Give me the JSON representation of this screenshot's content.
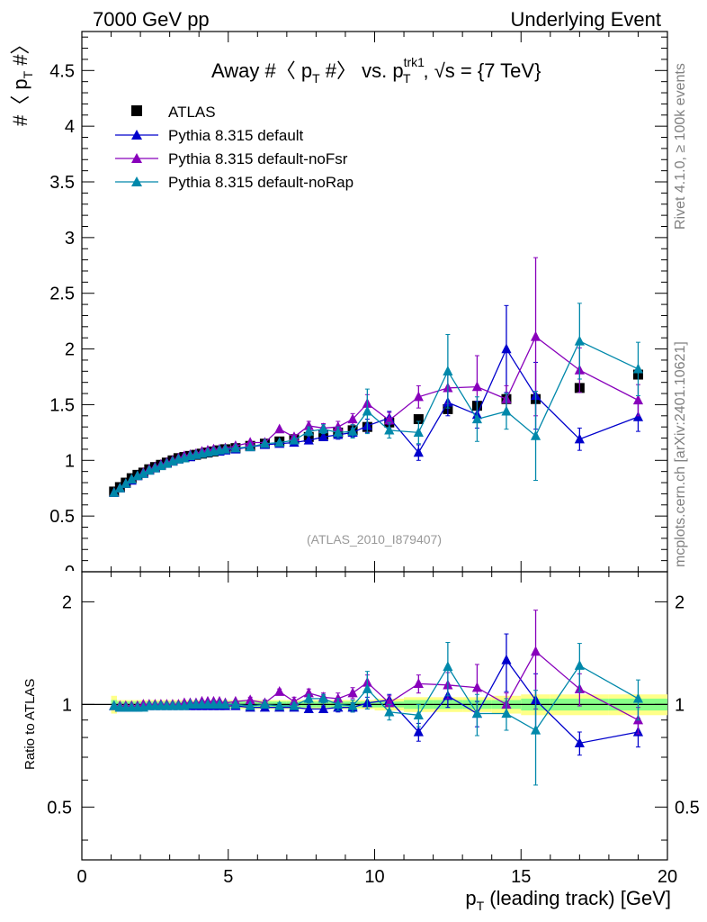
{
  "header": {
    "left": "7000 GeV pp",
    "right": "Underlying Event"
  },
  "side_labels": {
    "rivet": "Rivet 4.1.0, ≥ 100k events",
    "mcplots": "mcplots.cern.ch [arXiv:2401.10621]"
  },
  "watermark": "(ATLAS_2010_I879407)",
  "colors": {
    "atlas": "#000000",
    "default": "#0000cc",
    "noFsr": "#8800bb",
    "noRap": "#0088aa",
    "band_outer": "#ffff88",
    "band_inner": "#88ff88"
  },
  "chart_data": [
    {
      "panel": "main",
      "type": "scatter",
      "title_parts": {
        "prefix": "Away #〈 p",
        "sub_T": "T",
        "mid": " #〉 vs. p",
        "sup_trk1": "trk1",
        "sub_T2": "T",
        "suffix": ", √s = {7 TeV}"
      },
      "ylabel_parts": {
        "prefix": "#〈 p",
        "sub": "T",
        "suffix": " #〉"
      },
      "xlim": [
        0,
        20
      ],
      "ylim": [
        0,
        4.85
      ],
      "yticks": [
        0.5,
        1,
        1.5,
        2,
        2.5,
        3,
        3.5,
        4,
        4.5
      ],
      "ytick_labels": [
        "0.5",
        "1",
        "1.5",
        "2",
        "2.5",
        "3",
        "3.5",
        "4",
        "4.5"
      ],
      "legend": [
        "ATLAS",
        "Pythia 8.315 default",
        "Pythia 8.315 default-noFsr",
        "Pythia 8.315 default-noRap"
      ],
      "series": [
        {
          "name": "ATLAS",
          "style": "square",
          "x": [
            1.1,
            1.3,
            1.5,
            1.7,
            1.9,
            2.1,
            2.3,
            2.5,
            2.7,
            2.9,
            3.1,
            3.3,
            3.5,
            3.7,
            3.9,
            4.1,
            4.3,
            4.5,
            4.7,
            4.9,
            5.25,
            5.75,
            6.25,
            6.75,
            7.25,
            7.75,
            8.25,
            8.75,
            9.25,
            9.75,
            10.5,
            11.5,
            12.5,
            13.5,
            14.5,
            15.5,
            17.0,
            19.0
          ],
          "values": [
            0.72,
            0.76,
            0.8,
            0.84,
            0.87,
            0.89,
            0.92,
            0.94,
            0.96,
            0.98,
            1.0,
            1.02,
            1.03,
            1.04,
            1.05,
            1.06,
            1.07,
            1.08,
            1.09,
            1.1,
            1.11,
            1.13,
            1.15,
            1.17,
            1.19,
            1.21,
            1.23,
            1.25,
            1.27,
            1.3,
            1.34,
            1.37,
            1.46,
            1.49,
            1.55,
            1.55,
            1.65,
            1.77
          ]
        },
        {
          "name": "Pythia 8.315 default",
          "style": "line-triangle",
          "x": [
            1.1,
            1.3,
            1.5,
            1.7,
            1.9,
            2.1,
            2.3,
            2.5,
            2.7,
            2.9,
            3.1,
            3.3,
            3.5,
            3.7,
            3.9,
            4.1,
            4.3,
            4.5,
            4.7,
            4.9,
            5.25,
            5.75,
            6.25,
            6.75,
            7.25,
            7.75,
            8.25,
            8.75,
            9.25,
            9.75,
            10.5,
            11.5,
            12.5,
            13.5,
            14.5,
            15.5,
            17.0,
            19.0
          ],
          "values": [
            0.71,
            0.75,
            0.79,
            0.82,
            0.86,
            0.88,
            0.91,
            0.93,
            0.96,
            0.98,
            0.99,
            1.01,
            1.02,
            1.03,
            1.05,
            1.06,
            1.07,
            1.08,
            1.08,
            1.09,
            1.1,
            1.12,
            1.14,
            1.15,
            1.16,
            1.18,
            1.21,
            1.23,
            1.25,
            1.31,
            1.38,
            1.07,
            1.52,
            1.41,
            2.0,
            1.58,
            1.19,
            1.39
          ],
          "errors": [
            0.01,
            0.01,
            0.01,
            0.01,
            0.01,
            0.01,
            0.01,
            0.01,
            0.01,
            0.01,
            0.01,
            0.01,
            0.01,
            0.01,
            0.01,
            0.01,
            0.01,
            0.01,
            0.01,
            0.01,
            0.01,
            0.01,
            0.02,
            0.02,
            0.02,
            0.03,
            0.03,
            0.04,
            0.04,
            0.06,
            0.06,
            0.07,
            0.12,
            0.12,
            0.39,
            0.3,
            0.1,
            0.13
          ]
        },
        {
          "name": "Pythia 8.315 default-noFsr",
          "style": "line-triangle",
          "x": [
            1.1,
            1.3,
            1.5,
            1.7,
            1.9,
            2.1,
            2.3,
            2.5,
            2.7,
            2.9,
            3.1,
            3.3,
            3.5,
            3.7,
            3.9,
            4.1,
            4.3,
            4.5,
            4.7,
            4.9,
            5.25,
            5.75,
            6.25,
            6.75,
            7.25,
            7.75,
            8.25,
            8.75,
            9.25,
            9.75,
            10.5,
            11.5,
            12.5,
            13.5,
            14.5,
            15.5,
            17.0,
            19.0
          ],
          "values": [
            0.71,
            0.75,
            0.79,
            0.83,
            0.86,
            0.89,
            0.92,
            0.94,
            0.96,
            0.98,
            1.0,
            1.02,
            1.04,
            1.05,
            1.06,
            1.08,
            1.09,
            1.1,
            1.1,
            1.11,
            1.13,
            1.16,
            1.16,
            1.28,
            1.21,
            1.31,
            1.29,
            1.3,
            1.37,
            1.51,
            1.36,
            1.57,
            1.65,
            1.66,
            1.55,
            2.11,
            1.81,
            1.54
          ],
          "errors": [
            0.01,
            0.01,
            0.01,
            0.01,
            0.01,
            0.01,
            0.01,
            0.01,
            0.01,
            0.01,
            0.01,
            0.01,
            0.01,
            0.01,
            0.01,
            0.01,
            0.01,
            0.01,
            0.01,
            0.01,
            0.01,
            0.02,
            0.02,
            0.03,
            0.03,
            0.04,
            0.04,
            0.05,
            0.05,
            0.08,
            0.07,
            0.1,
            0.14,
            0.28,
            0.12,
            0.71,
            0.2,
            0.14
          ]
        },
        {
          "name": "Pythia 8.315 default-noRap",
          "style": "line-triangle",
          "x": [
            1.1,
            1.3,
            1.5,
            1.7,
            1.9,
            2.1,
            2.3,
            2.5,
            2.7,
            2.9,
            3.1,
            3.3,
            3.5,
            3.7,
            3.9,
            4.1,
            4.3,
            4.5,
            4.7,
            4.9,
            5.25,
            5.75,
            6.25,
            6.75,
            7.25,
            7.75,
            8.25,
            8.75,
            9.25,
            9.75,
            10.5,
            11.5,
            12.5,
            13.5,
            14.5,
            15.5,
            17.0,
            19.0
          ],
          "values": [
            0.71,
            0.75,
            0.79,
            0.83,
            0.86,
            0.88,
            0.91,
            0.93,
            0.95,
            0.97,
            0.99,
            1.01,
            1.02,
            1.04,
            1.05,
            1.06,
            1.07,
            1.08,
            1.09,
            1.1,
            1.11,
            1.12,
            1.15,
            1.16,
            1.18,
            1.26,
            1.28,
            1.25,
            1.26,
            1.44,
            1.27,
            1.25,
            1.8,
            1.37,
            1.44,
            1.22,
            2.07,
            1.82
          ],
          "errors": [
            0.01,
            0.01,
            0.01,
            0.01,
            0.01,
            0.01,
            0.01,
            0.01,
            0.01,
            0.01,
            0.01,
            0.01,
            0.01,
            0.01,
            0.01,
            0.01,
            0.01,
            0.01,
            0.01,
            0.01,
            0.01,
            0.02,
            0.02,
            0.02,
            0.03,
            0.04,
            0.04,
            0.05,
            0.06,
            0.2,
            0.07,
            0.1,
            0.33,
            0.2,
            0.16,
            0.4,
            0.34,
            0.24
          ]
        }
      ]
    },
    {
      "panel": "ratio",
      "type": "scatter",
      "ylabel": "Ratio to ATLAS",
      "xlabel_parts": {
        "prefix": "p",
        "sub": "T",
        "suffix": " (leading track) [GeV]"
      },
      "xlim": [
        0,
        20
      ],
      "ylim": [
        0.35,
        2.45
      ],
      "xticks": [
        0,
        5,
        10,
        15,
        20
      ],
      "xtick_labels": [
        "0",
        "5",
        "10",
        "15",
        "20"
      ],
      "yticks": [
        0.5,
        1,
        2
      ],
      "ytick_labels": [
        "0.5",
        "1",
        "2"
      ],
      "reference_line": 1,
      "band_edges": [
        1.0,
        1.2,
        1.4,
        1.6,
        1.8,
        2.0,
        2.2,
        2.4,
        2.6,
        2.8,
        3.0,
        3.2,
        3.4,
        3.6,
        3.8,
        4.0,
        4.2,
        4.4,
        4.6,
        4.8,
        5.0,
        5.5,
        6.0,
        6.5,
        7.0,
        7.5,
        8.0,
        8.5,
        9.0,
        9.5,
        10.0,
        11.0,
        12.0,
        13.0,
        14.0,
        15.0,
        16.0,
        18.0,
        20.0
      ],
      "band_outer": [
        0.06,
        0.03,
        0.03,
        0.03,
        0.03,
        0.03,
        0.03,
        0.03,
        0.03,
        0.03,
        0.03,
        0.03,
        0.03,
        0.03,
        0.03,
        0.03,
        0.03,
        0.03,
        0.03,
        0.03,
        0.03,
        0.03,
        0.03,
        0.03,
        0.03,
        0.03,
        0.03,
        0.03,
        0.03,
        0.03,
        0.04,
        0.05,
        0.05,
        0.05,
        0.06,
        0.07,
        0.07,
        0.07
      ],
      "band_inner": [
        0.03,
        0.02,
        0.02,
        0.02,
        0.02,
        0.02,
        0.02,
        0.02,
        0.02,
        0.02,
        0.02,
        0.02,
        0.02,
        0.02,
        0.02,
        0.02,
        0.02,
        0.02,
        0.02,
        0.02,
        0.02,
        0.02,
        0.02,
        0.02,
        0.02,
        0.02,
        0.02,
        0.02,
        0.02,
        0.02,
        0.02,
        0.03,
        0.03,
        0.03,
        0.03,
        0.04,
        0.04,
        0.04
      ],
      "series": [
        {
          "name": "Pythia 8.315 default",
          "x": [
            1.1,
            1.3,
            1.5,
            1.7,
            1.9,
            2.1,
            2.3,
            2.5,
            2.7,
            2.9,
            3.1,
            3.3,
            3.5,
            3.7,
            3.9,
            4.1,
            4.3,
            4.5,
            4.7,
            4.9,
            5.25,
            5.75,
            6.25,
            6.75,
            7.25,
            7.75,
            8.25,
            8.75,
            9.25,
            9.75,
            10.5,
            11.5,
            12.5,
            13.5,
            14.5,
            15.5,
            17.0,
            19.0
          ],
          "values": [
            0.99,
            0.98,
            0.98,
            0.98,
            0.98,
            0.99,
            0.99,
            0.99,
            0.99,
            0.99,
            0.99,
            0.99,
            0.99,
            0.99,
            0.99,
            0.99,
            0.99,
            0.99,
            0.99,
            0.99,
            0.99,
            0.98,
            0.98,
            0.98,
            0.98,
            0.97,
            0.97,
            0.98,
            0.98,
            1.01,
            1.03,
            0.83,
            1.06,
            0.94,
            1.35,
            1.03,
            0.77,
            0.83
          ],
          "errors": [
            0.01,
            0.01,
            0.01,
            0.01,
            0.01,
            0.01,
            0.01,
            0.01,
            0.01,
            0.01,
            0.01,
            0.01,
            0.01,
            0.01,
            0.01,
            0.01,
            0.01,
            0.01,
            0.01,
            0.01,
            0.01,
            0.01,
            0.01,
            0.01,
            0.02,
            0.02,
            0.02,
            0.03,
            0.03,
            0.04,
            0.04,
            0.05,
            0.08,
            0.08,
            0.26,
            0.2,
            0.06,
            0.08
          ]
        },
        {
          "name": "Pythia 8.315 default-noFsr",
          "x": [
            1.1,
            1.3,
            1.5,
            1.7,
            1.9,
            2.1,
            2.3,
            2.5,
            2.7,
            2.9,
            3.1,
            3.3,
            3.5,
            3.7,
            3.9,
            4.1,
            4.3,
            4.5,
            4.7,
            4.9,
            5.25,
            5.75,
            6.25,
            6.75,
            7.25,
            7.75,
            8.25,
            8.75,
            9.25,
            9.75,
            10.5,
            11.5,
            12.5,
            13.5,
            14.5,
            15.5,
            17.0,
            19.0
          ],
          "values": [
            0.99,
            0.99,
            0.99,
            0.99,
            0.99,
            1.0,
            1.0,
            1.0,
            1.0,
            1.0,
            1.0,
            1.0,
            1.01,
            1.01,
            1.01,
            1.02,
            1.02,
            1.02,
            1.02,
            1.01,
            1.02,
            1.03,
            1.01,
            1.09,
            1.02,
            1.08,
            1.05,
            1.04,
            1.08,
            1.16,
            1.01,
            1.15,
            1.14,
            1.12,
            1.0,
            1.43,
            1.11,
            0.9
          ],
          "errors": [
            0.01,
            0.01,
            0.01,
            0.01,
            0.01,
            0.01,
            0.01,
            0.01,
            0.01,
            0.01,
            0.01,
            0.01,
            0.01,
            0.01,
            0.01,
            0.01,
            0.01,
            0.01,
            0.01,
            0.01,
            0.01,
            0.02,
            0.02,
            0.02,
            0.03,
            0.03,
            0.03,
            0.04,
            0.04,
            0.06,
            0.05,
            0.07,
            0.1,
            0.19,
            0.08,
            0.46,
            0.12,
            0.08
          ]
        },
        {
          "name": "Pythia 8.315 default-noRap",
          "x": [
            1.1,
            1.3,
            1.5,
            1.7,
            1.9,
            2.1,
            2.3,
            2.5,
            2.7,
            2.9,
            3.1,
            3.3,
            3.5,
            3.7,
            3.9,
            4.1,
            4.3,
            4.5,
            4.7,
            4.9,
            5.25,
            5.75,
            6.25,
            6.75,
            7.25,
            7.75,
            8.25,
            8.75,
            9.25,
            9.75,
            10.5,
            11.5,
            12.5,
            13.5,
            14.5,
            15.5,
            17.0,
            19.0
          ],
          "values": [
            0.99,
            0.98,
            0.98,
            0.98,
            0.98,
            0.98,
            0.99,
            0.99,
            0.99,
            0.99,
            0.99,
            0.99,
            0.99,
            1.0,
            1.0,
            1.0,
            1.0,
            1.0,
            1.0,
            1.0,
            1.0,
            0.99,
            1.0,
            0.99,
            0.99,
            1.04,
            1.04,
            1.0,
            0.99,
            1.11,
            0.95,
            0.93,
            1.29,
            0.94,
            0.94,
            0.84,
            1.3,
            1.04
          ],
          "errors": [
            0.01,
            0.01,
            0.01,
            0.01,
            0.01,
            0.01,
            0.01,
            0.01,
            0.01,
            0.01,
            0.01,
            0.01,
            0.01,
            0.01,
            0.01,
            0.01,
            0.01,
            0.01,
            0.01,
            0.01,
            0.01,
            0.01,
            0.01,
            0.02,
            0.02,
            0.03,
            0.03,
            0.04,
            0.04,
            0.14,
            0.05,
            0.07,
            0.23,
            0.13,
            0.1,
            0.26,
            0.21,
            0.14
          ]
        }
      ]
    }
  ]
}
